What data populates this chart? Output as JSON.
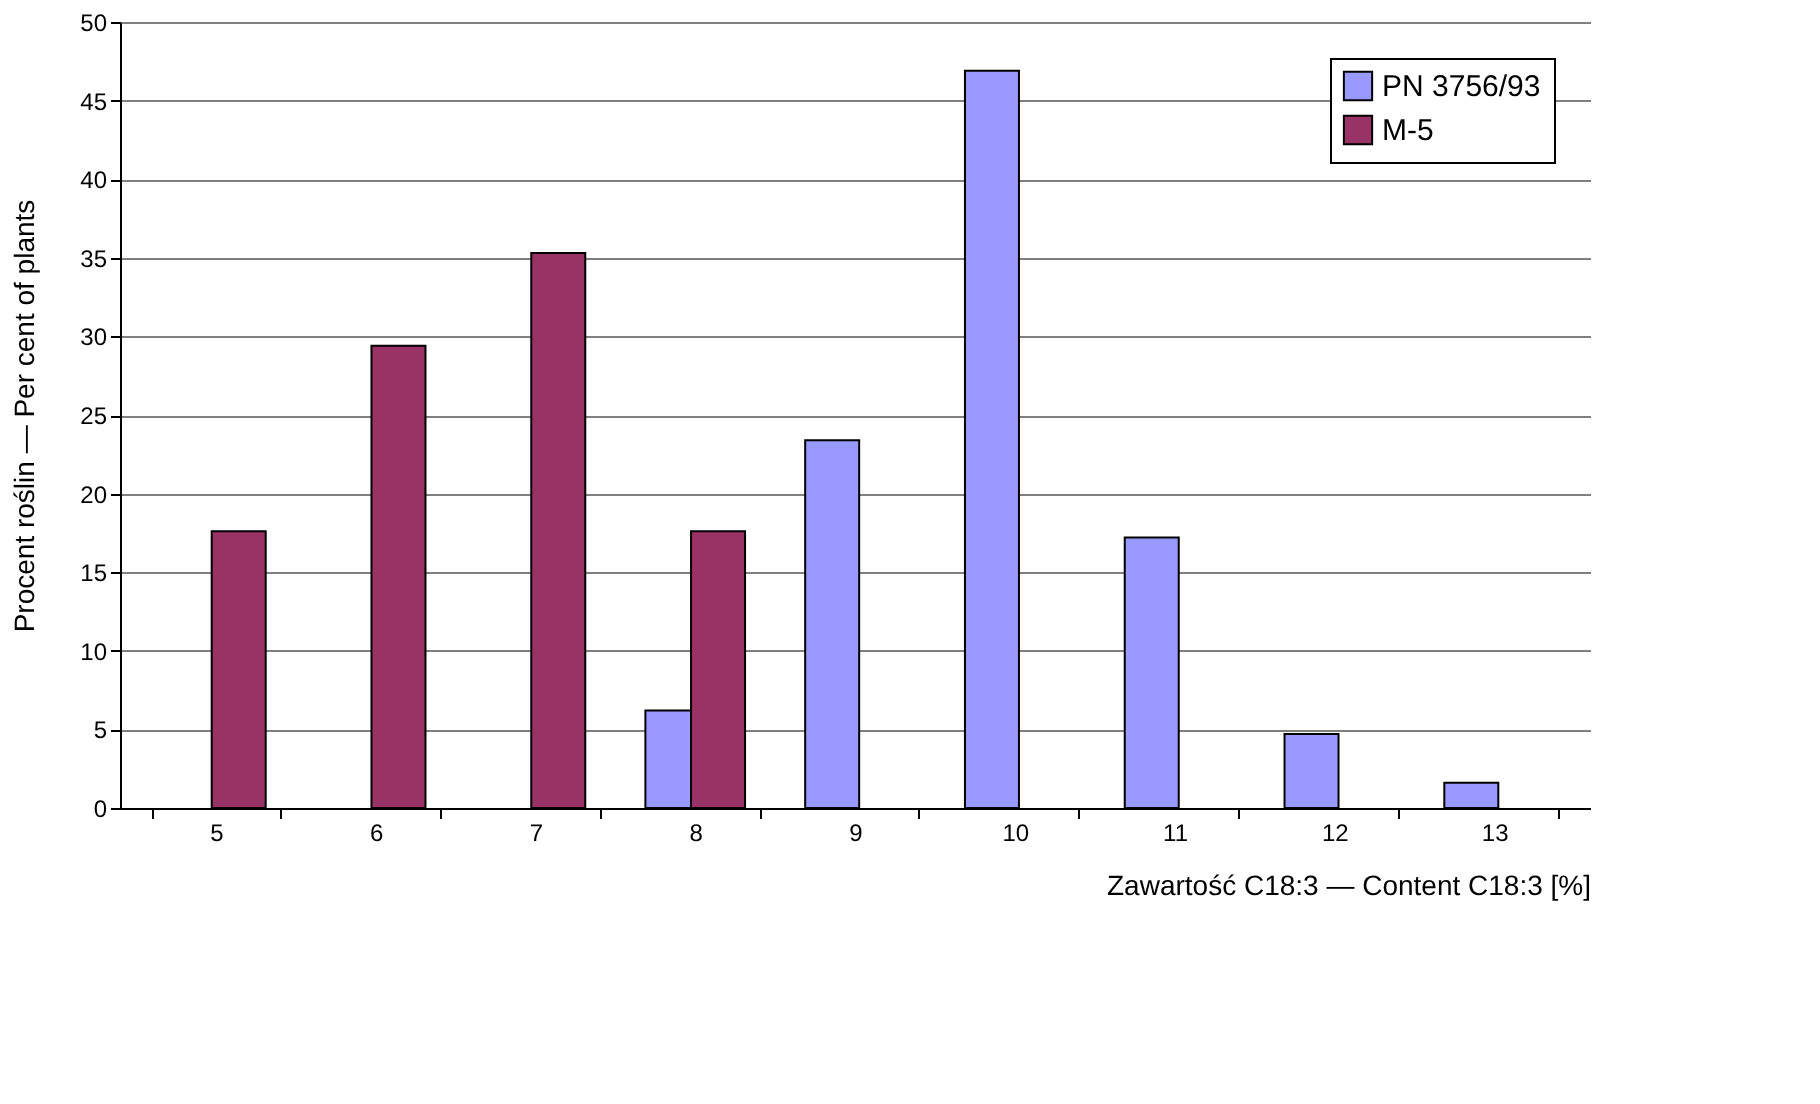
{
  "chart_data": {
    "type": "bar",
    "xlabel": "Zawartość C18:3 — Content C18:3 [%]",
    "ylabel": "Procent roślin — Per cent of plants",
    "categories": [
      "5",
      "6",
      "7",
      "8",
      "9",
      "10",
      "11",
      "12",
      "13"
    ],
    "series": [
      {
        "name": "PN 3756/93",
        "color": "#9999ff",
        "values": [
          null,
          null,
          null,
          6.2,
          23.4,
          46.9,
          17.2,
          4.7,
          1.6
        ]
      },
      {
        "name": "M-5",
        "color": "#993366",
        "values": [
          17.6,
          29.4,
          35.3,
          17.6,
          null,
          null,
          null,
          null,
          null
        ]
      }
    ],
    "ylim": [
      0,
      50
    ],
    "yticks": [
      0,
      5,
      10,
      15,
      20,
      25,
      30,
      35,
      40,
      45,
      50
    ],
    "grid": "y",
    "legend": "top right"
  }
}
